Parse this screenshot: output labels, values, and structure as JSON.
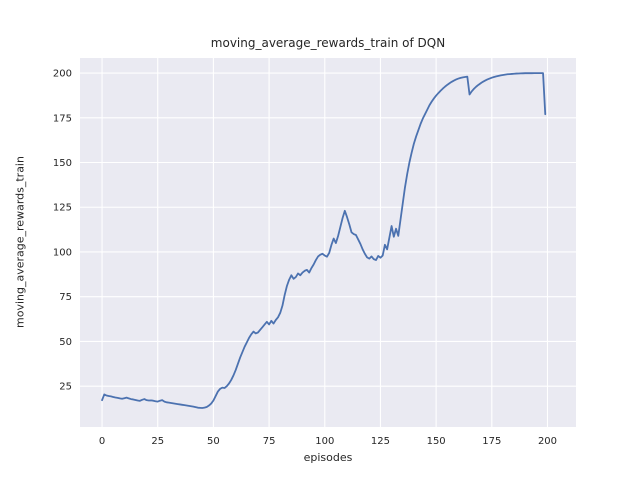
{
  "figure": {
    "title": "moving_average_rewards_train of DQN",
    "xlabel": "episodes",
    "ylabel": "moving_average_rewards_train"
  },
  "axes": {
    "xticks": [
      0,
      25,
      50,
      75,
      100,
      125,
      150,
      175,
      200
    ],
    "yticks": [
      25,
      50,
      75,
      100,
      125,
      150,
      175,
      200
    ]
  },
  "style": {
    "line_color": "#4c72b0",
    "plot_bg": "#eaeaf2",
    "grid_color": "#ffffff",
    "text_color": "#262626",
    "fig_bg": "#ffffff"
  },
  "chart_data": {
    "type": "line",
    "title": "moving_average_rewards_train of DQN",
    "xlabel": "episodes",
    "ylabel": "moving_average_rewards_train",
    "legend": "none",
    "grid": true,
    "xlim": [
      -9.9,
      212.8
    ],
    "ylim": [
      2.2,
      208.4
    ],
    "x": [
      0,
      1,
      2,
      3,
      4,
      5,
      6,
      7,
      8,
      9,
      10,
      11,
      12,
      13,
      14,
      15,
      16,
      17,
      18,
      19,
      20,
      21,
      22,
      23,
      24,
      25,
      26,
      27,
      28,
      29,
      30,
      31,
      32,
      33,
      34,
      35,
      36,
      37,
      38,
      39,
      40,
      41,
      42,
      43,
      44,
      45,
      46,
      47,
      48,
      49,
      50,
      51,
      52,
      53,
      54,
      55,
      56,
      57,
      58,
      59,
      60,
      61,
      62,
      63,
      64,
      65,
      66,
      67,
      68,
      69,
      70,
      71,
      72,
      73,
      74,
      75,
      76,
      77,
      78,
      79,
      80,
      81,
      82,
      83,
      84,
      85,
      86,
      87,
      88,
      89,
      90,
      91,
      92,
      93,
      94,
      95,
      96,
      97,
      98,
      99,
      100,
      101,
      102,
      103,
      104,
      105,
      106,
      107,
      108,
      109,
      110,
      111,
      112,
      113,
      114,
      115,
      116,
      117,
      118,
      119,
      120,
      121,
      122,
      123,
      124,
      125,
      126,
      127,
      128,
      129,
      130,
      131,
      132,
      133,
      134,
      135,
      136,
      137,
      138,
      139,
      140,
      141,
      142,
      143,
      144,
      145,
      146,
      147,
      148,
      149,
      150,
      151,
      152,
      153,
      154,
      155,
      156,
      157,
      158,
      159,
      160,
      161,
      162,
      163,
      164,
      165,
      166,
      167,
      168,
      169,
      170,
      171,
      172,
      173,
      174,
      175,
      176,
      177,
      178,
      179,
      180,
      181,
      182,
      183,
      184,
      185,
      186,
      187,
      188,
      189,
      190,
      191,
      192,
      193,
      194,
      195,
      196,
      197,
      198,
      199
    ],
    "values": [
      17.2,
      20.4,
      19.8,
      19.5,
      19.3,
      19.0,
      18.7,
      18.5,
      18.2,
      18.0,
      18.3,
      18.6,
      18.2,
      17.8,
      17.6,
      17.3,
      17.0,
      16.8,
      17.4,
      17.8,
      17.2,
      17.0,
      17.1,
      16.9,
      16.6,
      16.4,
      16.9,
      17.2,
      16.4,
      16.0,
      15.8,
      15.6,
      15.4,
      15.2,
      15.0,
      14.8,
      14.6,
      14.4,
      14.2,
      14.0,
      13.8,
      13.6,
      13.3,
      13.0,
      12.9,
      12.8,
      13.0,
      13.4,
      14.2,
      15.3,
      17.0,
      19.5,
      22.0,
      23.5,
      24.2,
      24.0,
      25.0,
      26.5,
      28.5,
      31.0,
      34.0,
      37.5,
      41.0,
      44.0,
      47.0,
      49.5,
      52.0,
      54.0,
      55.5,
      54.5,
      55.0,
      56.5,
      58.0,
      59.5,
      61.0,
      59.5,
      61.5,
      60.0,
      62.0,
      63.5,
      66.0,
      70.0,
      76.0,
      81.0,
      84.5,
      87.0,
      85.0,
      86.0,
      88.0,
      87.0,
      88.5,
      89.5,
      90.0,
      88.5,
      91.0,
      93.0,
      95.5,
      97.5,
      98.5,
      99.0,
      98.0,
      97.4,
      99.5,
      104.0,
      107.5,
      105.0,
      109.0,
      114.0,
      119.0,
      123.0,
      119.5,
      115.5,
      111.0,
      110.0,
      109.5,
      107.0,
      104.5,
      101.5,
      99.0,
      97.0,
      96.3,
      97.5,
      96.0,
      95.5,
      97.8,
      96.8,
      98.0,
      104.0,
      101.5,
      108.0,
      114.5,
      108.5,
      113.0,
      109.0,
      118.0,
      127.0,
      136.0,
      143.5,
      150.0,
      155.5,
      160.5,
      164.5,
      168.0,
      171.5,
      174.5,
      177.0,
      179.5,
      182.0,
      184.0,
      185.8,
      187.4,
      188.8,
      190.1,
      191.3,
      192.4,
      193.4,
      194.3,
      195.1,
      195.8,
      196.4,
      196.9,
      197.3,
      197.6,
      197.8,
      198.0,
      188.0,
      189.8,
      191.2,
      192.4,
      193.4,
      194.3,
      195.1,
      195.8,
      196.4,
      196.9,
      197.4,
      197.8,
      198.1,
      198.4,
      198.7,
      198.9,
      199.1,
      199.3,
      199.4,
      199.5,
      199.6,
      199.7,
      199.75,
      199.8,
      199.85,
      199.9,
      199.9,
      199.9,
      199.9,
      199.95,
      199.95,
      199.95,
      199.95,
      199.95,
      177.0
    ]
  }
}
